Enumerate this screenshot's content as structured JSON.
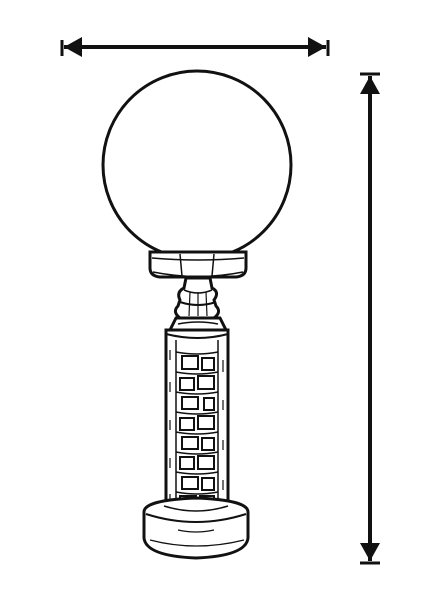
{
  "diagram": {
    "subject": "globe-lamp-post",
    "dimension_markers": {
      "width": {
        "arrow_style": "double-headed",
        "label": ""
      },
      "height": {
        "arrow_style": "double-headed",
        "label": ""
      }
    },
    "colors": {
      "ink": "#111111",
      "paper": "#ffffff"
    }
  }
}
